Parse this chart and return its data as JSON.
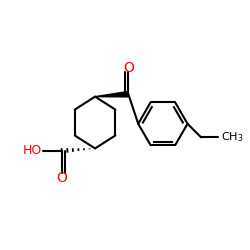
{
  "bg_color": "#ffffff",
  "bond_color": "#000000",
  "o_color": "#ff0000",
  "line_width": 1.5,
  "fig_size": [
    2.5,
    2.5
  ],
  "dpi": 100,
  "xlim": [
    0,
    10
  ],
  "ylim": [
    0,
    10
  ]
}
